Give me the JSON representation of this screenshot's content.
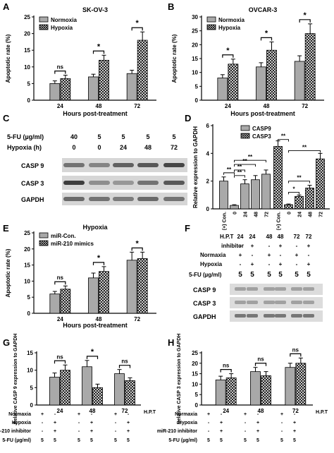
{
  "figure": {
    "panels": {
      "A": {
        "letter": "A"
      },
      "B": {
        "letter": "B"
      },
      "C": {
        "letter": "C"
      },
      "D": {
        "letter": "D"
      },
      "E": {
        "letter": "E"
      },
      "F": {
        "letter": "F"
      },
      "G": {
        "letter": "G"
      },
      "H": {
        "letter": "H"
      }
    },
    "blot_C": {
      "row_labels": [
        "5-FU (µg/ml)",
        "Hypoxia (h)"
      ],
      "fu_values": [
        "40",
        "5",
        "5",
        "5",
        "5"
      ],
      "hypoxia_values": [
        "0",
        "0",
        "24",
        "48",
        "72"
      ],
      "bands": [
        "CASP 9",
        "CASP 3",
        "GAPDH"
      ]
    },
    "blot_F": {
      "row_labels": [
        "H.P.T",
        "inhibitor",
        "Normaxia",
        "Hypoxia",
        "5-FU (µg/ml)"
      ],
      "hpt": [
        "24",
        "24",
        "48",
        "48",
        "72",
        "72"
      ],
      "inhibitor": [
        "-",
        "+",
        "-",
        "+",
        "-",
        "+"
      ],
      "normaxia": [
        "+",
        "-",
        "+",
        "-",
        "+",
        "-"
      ],
      "hypoxia": [
        "-",
        "+",
        "-",
        "+",
        "-",
        "+"
      ],
      "fu": [
        "5",
        "5",
        "5",
        "5",
        "5",
        "5"
      ],
      "bands": [
        "CASP 9",
        "CASP 3",
        "GAPDH"
      ]
    },
    "table_G": {
      "row_labels": [
        "Normaxia",
        "Hypoxia",
        "miR-210 inhibitor",
        "5-FU (µg/ml)"
      ],
      "cols": [
        [
          "+",
          "-",
          "-",
          "5"
        ],
        [
          "-",
          "+",
          "+",
          "5"
        ],
        [
          "+",
          "-",
          "-",
          "5"
        ],
        [
          "-",
          "+",
          "+",
          "5"
        ],
        [
          "+",
          "-",
          "-",
          "5"
        ],
        [
          "-",
          "+",
          "+",
          "5"
        ]
      ]
    },
    "table_H": {
      "row_labels": [
        "Normaxia",
        "Hypoxia",
        "miR-210 inhibitor",
        "5-FU (µg/ml)"
      ],
      "cols": [
        [
          "+",
          "-",
          "-",
          "5"
        ],
        [
          "-",
          "+",
          "+",
          "5"
        ],
        [
          "+",
          "-",
          "-",
          "5"
        ],
        [
          "-",
          "+",
          "+",
          "5"
        ],
        [
          "+",
          "-",
          "-",
          "5"
        ],
        [
          "-",
          "+",
          "+",
          "5"
        ]
      ]
    },
    "colors": {
      "gray_bar": "#a9a9a9",
      "ink": "#000000",
      "blot_bg": "#d6d6d6"
    }
  },
  "chart_data": [
    {
      "id": "A",
      "type": "bar",
      "title": "SK-OV-3",
      "xlabel": "Hours post-treatment",
      "ylabel": "Apoptotic rate (%)",
      "ylim": [
        0,
        25
      ],
      "yticks": [
        0,
        5,
        10,
        15,
        20,
        25
      ],
      "categories": [
        "24",
        "48",
        "72"
      ],
      "legend": "top-left",
      "series": [
        {
          "name": "Normoxia",
          "values": [
            5,
            7,
            8
          ],
          "errors": [
            0.8,
            0.8,
            1.0
          ]
        },
        {
          "name": "Hypoxia",
          "values": [
            6.5,
            12,
            18
          ],
          "errors": [
            1.0,
            1.5,
            2.5
          ]
        }
      ],
      "annotations": [
        "ns",
        "*",
        "*"
      ]
    },
    {
      "id": "B",
      "type": "bar",
      "title": "OVCAR-3",
      "xlabel": "Hours post-treatment",
      "ylabel": "Apoptotic rate (%)",
      "ylim": [
        0,
        30
      ],
      "yticks": [
        0,
        5,
        10,
        15,
        20,
        25,
        30
      ],
      "categories": [
        "24",
        "48",
        "72"
      ],
      "legend": "top-left",
      "series": [
        {
          "name": "Normoxia",
          "values": [
            8,
            12,
            14
          ],
          "errors": [
            1.2,
            1.5,
            2.0
          ]
        },
        {
          "name": "Hypoxia",
          "values": [
            13,
            18,
            24
          ],
          "errors": [
            1.8,
            3.0,
            3.5
          ]
        }
      ],
      "annotations": [
        "*",
        "*",
        "*"
      ]
    },
    {
      "id": "D",
      "type": "bar",
      "xlabel": "",
      "ylabel": "Relative expression to GAPDH",
      "ylim": [
        0,
        6
      ],
      "yticks": [
        0,
        2,
        4,
        6
      ],
      "categories": [
        "(+) Con.",
        "0",
        "24",
        "48",
        "72"
      ],
      "legend": "top-right",
      "series": [
        {
          "name": "CASP9",
          "values": [
            2.0,
            0.25,
            1.8,
            2.1,
            2.5
          ],
          "errors": [
            0.3,
            0.05,
            0.3,
            0.3,
            0.3
          ]
        },
        {
          "name": "CASP3",
          "values": [
            4.5,
            0.3,
            0.9,
            1.5,
            3.6
          ],
          "errors": [
            0.4,
            0.05,
            0.1,
            0.2,
            0.4
          ]
        }
      ],
      "annotations": [
        "**",
        "**",
        "**",
        "**",
        "**",
        "**",
        "*",
        "**",
        "**"
      ]
    },
    {
      "id": "E",
      "type": "bar",
      "title": "Hypoxia",
      "xlabel": "Hours post-treatment",
      "ylabel": "Apoptotic rate (%)",
      "ylim": [
        0,
        25
      ],
      "yticks": [
        0,
        5,
        10,
        15,
        20,
        25
      ],
      "categories": [
        "24",
        "48",
        "72"
      ],
      "legend": "top-left",
      "series": [
        {
          "name": "miR-Con.",
          "values": [
            6,
            11,
            16.5
          ],
          "errors": [
            0.8,
            1.5,
            2.5
          ]
        },
        {
          "name": "miR-210 mimics",
          "values": [
            7.5,
            13,
            17
          ],
          "errors": [
            1.0,
            1.5,
            2.0
          ]
        }
      ],
      "annotations": [
        "ns",
        "*",
        "*"
      ]
    },
    {
      "id": "G",
      "type": "bar",
      "xlabel": "H.P.T",
      "ylabel": "Relative CASP 9 expression to GAPDH",
      "ylim": [
        0,
        15
      ],
      "yticks": [
        0,
        5,
        10,
        15
      ],
      "categories": [
        "24",
        "48",
        "72"
      ],
      "series": [
        {
          "values": [
            8,
            11,
            9
          ],
          "errors": [
            1.2,
            1.8,
            1.2
          ]
        },
        {
          "values": [
            10,
            5,
            7
          ],
          "errors": [
            1.5,
            1.0,
            0.8
          ]
        }
      ],
      "annotations": [
        "ns",
        "*",
        "ns"
      ]
    },
    {
      "id": "H",
      "type": "bar",
      "xlabel": "H.P.T",
      "ylabel": "Relative CASP 3 expression to GAPDH",
      "ylim": [
        0,
        25
      ],
      "yticks": [
        0,
        5,
        10,
        15,
        20,
        25
      ],
      "categories": [
        "24",
        "48",
        "72"
      ],
      "series": [
        {
          "values": [
            12,
            16,
            18
          ],
          "errors": [
            1.8,
            2.0,
            2.0
          ]
        },
        {
          "values": [
            13,
            14,
            20
          ],
          "errors": [
            2.0,
            2.0,
            2.5
          ]
        }
      ],
      "annotations": [
        "ns",
        "ns",
        "ns"
      ]
    }
  ]
}
